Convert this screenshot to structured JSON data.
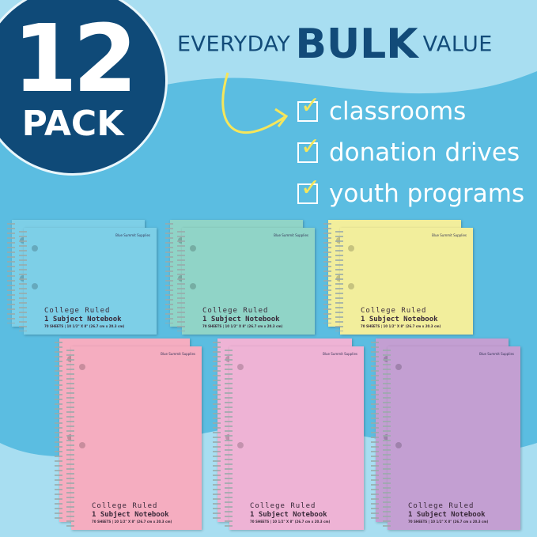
{
  "badge": {
    "number": "12",
    "label": "PACK"
  },
  "headline": {
    "pre": "EVERYDAY",
    "big": "BULK",
    "post": "VALUE"
  },
  "uses": [
    "classrooms",
    "donation drives",
    "youth programs"
  ],
  "notebook": {
    "brand": "Blue Summit Supplies",
    "ruling": "College Ruled",
    "type": "1 Subject Notebook",
    "specs": "70 SHEETS | 10 1/2\" X 8\" (26.7 cm x 20.3 cm)"
  },
  "colors": {
    "navy": "#0f4a78",
    "check": "#f6e65a",
    "sky_top": "#a8def1",
    "sky_mid": "#5bbde1"
  },
  "notebooks": [
    {
      "color": "blue",
      "hex": "#7dcfe7"
    },
    {
      "color": "teal",
      "hex": "#90d4c7"
    },
    {
      "color": "yellow",
      "hex": "#f2ee9c"
    },
    {
      "color": "pink",
      "hex": "#f5adc0"
    },
    {
      "color": "light-pink",
      "hex": "#eeb3d5"
    },
    {
      "color": "purple",
      "hex": "#c39fd2"
    }
  ]
}
